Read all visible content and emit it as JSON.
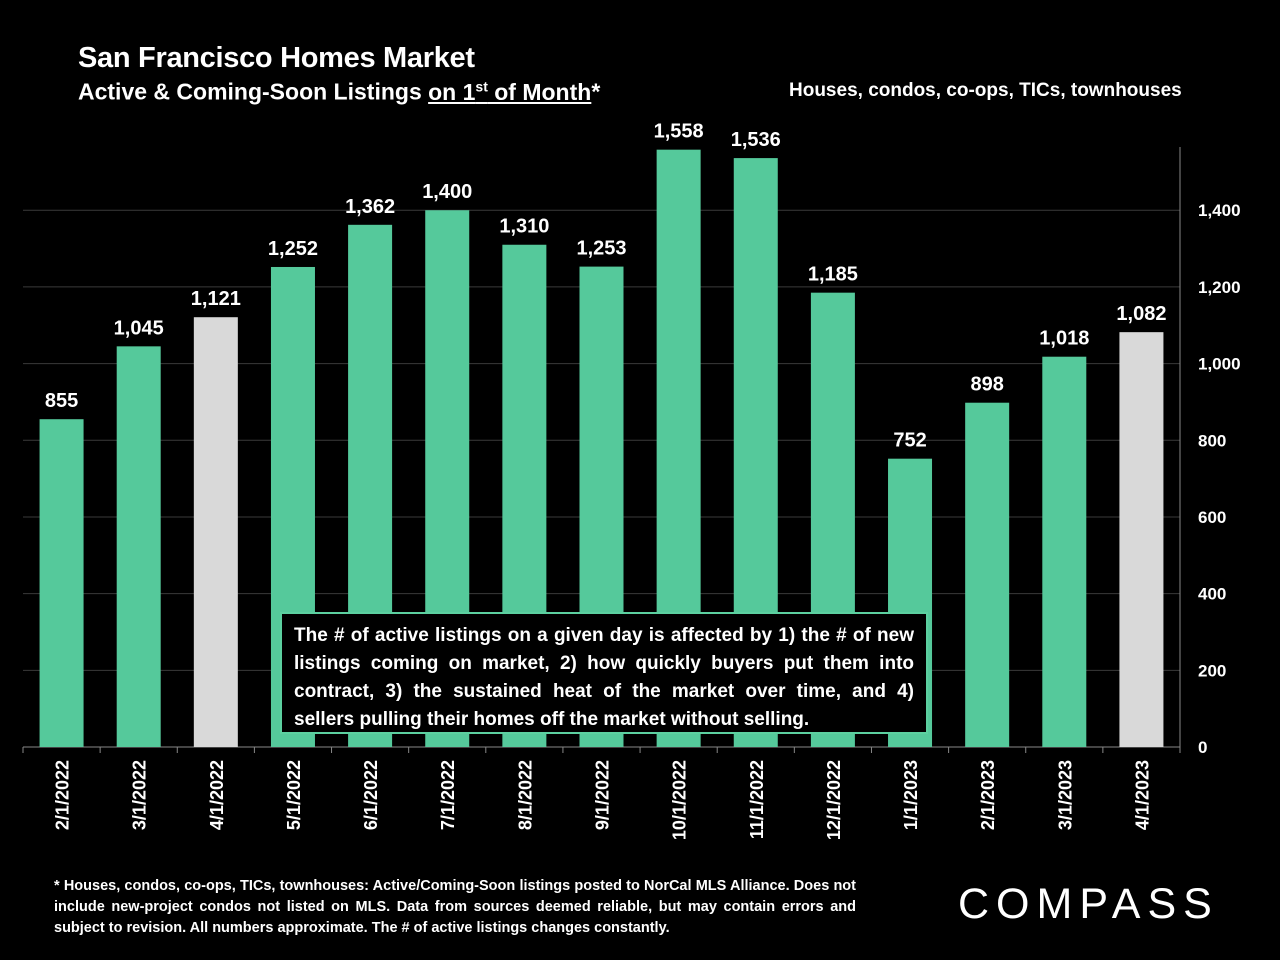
{
  "title": "San Francisco Homes Market",
  "subtitle": {
    "lead": "Active & Coming-Soon Listings ",
    "underlined_pre": "on 1",
    "superscript": "st",
    "underlined_post": " of Month",
    "tail": "*"
  },
  "scope_note": "Houses, condos, co-ops, TICs, townhouses",
  "callout_text": "The # of active listings on a given day is affected by 1) the # of new listings coming on market, 2) how quickly buyers put them into contract, 3) the sustained heat of the market over time, and 4) sellers pulling their homes off the market without selling.",
  "footnote": "* Houses, condos, co-ops, TICs, townhouses: Active/Coming-Soon listings posted to NorCal MLS Alliance. Does not include new-project condos not listed on MLS. Data from sources deemed reliable, but may contain errors and subject to revision. All numbers approximate. The # of active listings changes constantly.",
  "logo": "COMPASS",
  "colors": {
    "bar": "#55c99b",
    "highlight_bar": "#d9d9d9",
    "background": "#000000",
    "text": "#ffffff",
    "grid": "#3a3a3a"
  },
  "chart_data": {
    "type": "bar",
    "categories": [
      "2/1/2022",
      "3/1/2022",
      "4/1/2022",
      "5/1/2022",
      "6/1/2022",
      "7/1/2022",
      "8/1/2022",
      "9/1/2022",
      "10/1/2022",
      "11/1/2022",
      "12/1/2022",
      "1/1/2023",
      "2/1/2023",
      "3/1/2023",
      "4/1/2023"
    ],
    "values": [
      855,
      1045,
      1121,
      1252,
      1362,
      1400,
      1310,
      1253,
      1558,
      1536,
      1185,
      752,
      898,
      1018,
      1082
    ],
    "value_labels": [
      "855",
      "1,045",
      "1,121",
      "1,252",
      "1,362",
      "1,400",
      "1,310",
      "1,253",
      "1,558",
      "1,536",
      "1,185",
      "752",
      "898",
      "1,018",
      "1,082"
    ],
    "highlighted": [
      "4/1/2022",
      "4/1/2023"
    ],
    "ylim": [
      0,
      1580
    ],
    "yticks": [
      0,
      200,
      400,
      600,
      800,
      1000,
      1200,
      1400
    ],
    "ytick_labels": [
      "0",
      "200",
      "400",
      "600",
      "800",
      "1,000",
      "1,200",
      "1,400"
    ],
    "y_axis_position": "right",
    "grid": true
  }
}
